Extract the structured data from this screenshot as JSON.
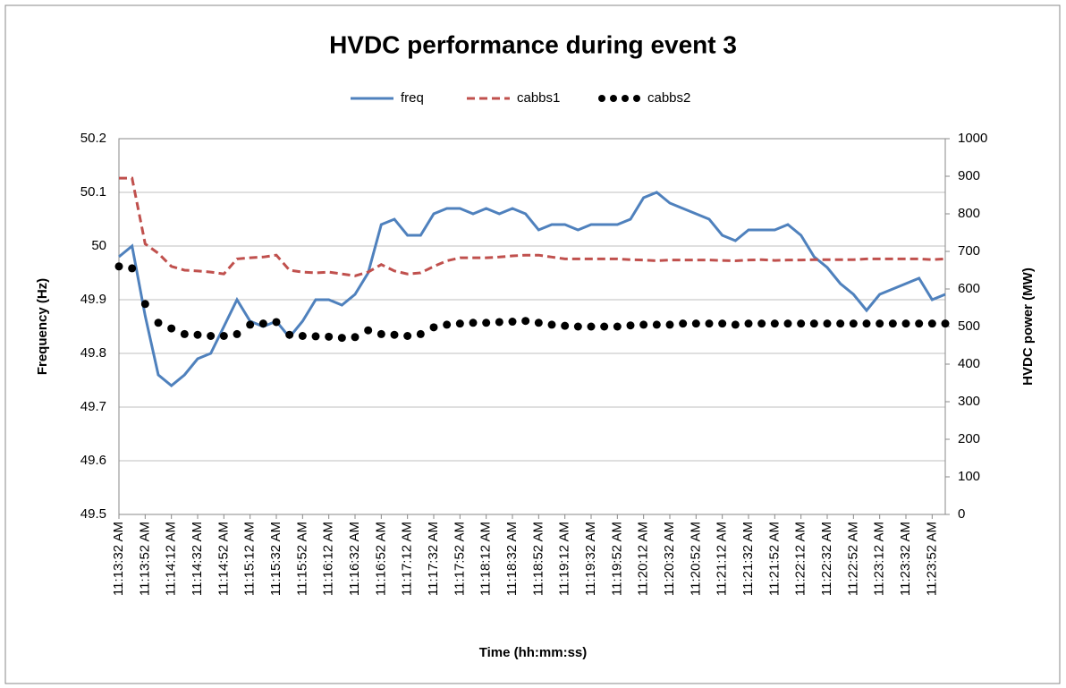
{
  "chart_data": {
    "type": "line",
    "title": "HVDC performance during event 3",
    "x_label": "Time (hh:mm:ss)",
    "y_label": "Frequency (Hz)",
    "y2_label": "HVDC power (MW)",
    "legend": "top",
    "grid": true,
    "categories": [
      "11:13:32 AM",
      null,
      "11:13:52 AM",
      null,
      "11:14:12 AM",
      null,
      "11:14:32 AM",
      null,
      "11:14:52 AM",
      null,
      "11:15:12 AM",
      null,
      "11:15:32 AM",
      null,
      "11:15:52 AM",
      null,
      "11:16:12 AM",
      null,
      "11:16:32 AM",
      null,
      "11:16:52 AM",
      null,
      "11:17:12 AM",
      null,
      "11:17:32 AM",
      null,
      "11:17:52 AM",
      null,
      "11:18:12 AM",
      null,
      "11:18:32 AM",
      null,
      "11:18:52 AM",
      null,
      "11:19:12 AM",
      null,
      "11:19:32 AM",
      null,
      "11:19:52 AM",
      null,
      "11:20:12 AM",
      null,
      "11:20:32 AM",
      null,
      "11:20:52 AM",
      null,
      "11:21:12 AM",
      null,
      "11:21:32 AM",
      null,
      "11:21:52 AM",
      null,
      "11:22:12 AM",
      null,
      "11:22:32 AM",
      null,
      "11:22:52 AM",
      null,
      "11:23:12 AM",
      null,
      "11:23:32 AM",
      null,
      "11:23:52 AM",
      null
    ],
    "ylim": [
      49.5,
      50.2
    ],
    "yticks": [
      49.5,
      49.6,
      49.7,
      49.8,
      49.9,
      50,
      50.1,
      50.2
    ],
    "y2lim": [
      0,
      1000
    ],
    "y2ticks": [
      0,
      100,
      200,
      300,
      400,
      500,
      600,
      700,
      800,
      900,
      1000
    ],
    "series": [
      {
        "name": "freq",
        "color": "#4f81bd",
        "style": "solid",
        "axis": "y",
        "values": [
          49.98,
          50.0,
          49.87,
          49.76,
          49.74,
          49.76,
          49.79,
          49.8,
          49.85,
          49.9,
          49.86,
          49.85,
          49.86,
          49.83,
          49.86,
          49.9,
          49.9,
          49.89,
          49.91,
          49.95,
          50.04,
          50.05,
          50.02,
          50.02,
          50.06,
          50.07,
          50.07,
          50.06,
          50.07,
          50.06,
          50.07,
          50.06,
          50.03,
          50.04,
          50.04,
          50.03,
          50.04,
          50.04,
          50.04,
          50.05,
          50.09,
          50.1,
          50.08,
          50.07,
          50.06,
          50.05,
          50.02,
          50.01,
          50.03,
          50.03,
          50.03,
          50.04,
          50.02,
          49.98,
          49.96,
          49.93,
          49.91,
          49.88,
          49.91,
          49.92,
          49.93,
          49.94,
          49.9,
          49.91
        ]
      },
      {
        "name": "cabbs1",
        "color": "#c0504d",
        "style": "dashed",
        "axis": "y2",
        "values": [
          895,
          895,
          720,
          695,
          660,
          650,
          648,
          645,
          640,
          680,
          683,
          685,
          690,
          650,
          645,
          643,
          645,
          640,
          635,
          645,
          665,
          648,
          640,
          643,
          660,
          675,
          683,
          683,
          683,
          685,
          688,
          690,
          690,
          685,
          680,
          680,
          680,
          680,
          680,
          678,
          677,
          675,
          677,
          677,
          677,
          677,
          676,
          675,
          677,
          678,
          676,
          677,
          677,
          678,
          678,
          678,
          678,
          680,
          680,
          680,
          680,
          680,
          678,
          680
        ]
      },
      {
        "name": "cabbs2",
        "color": "#000000",
        "style": "dotted",
        "axis": "y2",
        "values": [
          660,
          655,
          560,
          510,
          495,
          480,
          478,
          475,
          475,
          480,
          505,
          508,
          512,
          478,
          475,
          474,
          473,
          470,
          472,
          490,
          480,
          478,
          475,
          480,
          498,
          505,
          508,
          510,
          510,
          512,
          513,
          515,
          510,
          505,
          502,
          500,
          500,
          500,
          500,
          503,
          505,
          505,
          505,
          508,
          508,
          508,
          508,
          505,
          508,
          508,
          508,
          508,
          508,
          508,
          508,
          508,
          508,
          508,
          508,
          508,
          508,
          508,
          508,
          508
        ]
      }
    ]
  }
}
